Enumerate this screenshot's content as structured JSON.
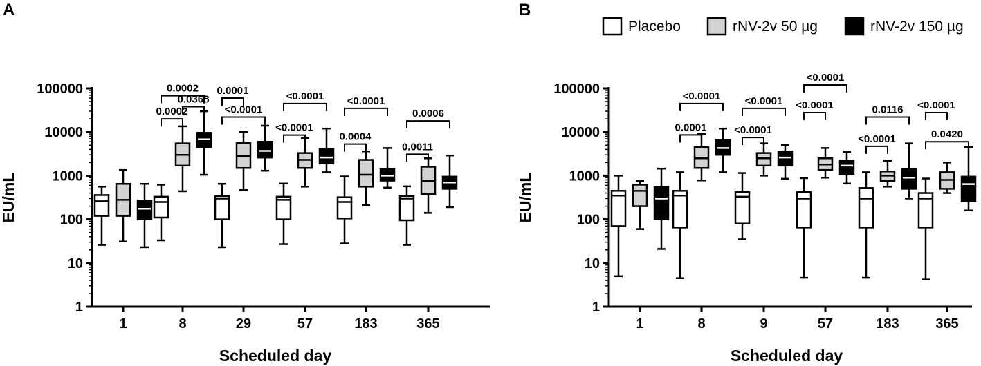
{
  "legend": [
    {
      "label": "Placebo",
      "fill": "#ffffff"
    },
    {
      "label": "rNV-2v 50 µg",
      "fill": "#d3d3d3"
    },
    {
      "label": "rNV-2v 150 µg",
      "fill": "#000000"
    }
  ],
  "chart_data": [
    {
      "panel": "A",
      "type": "box",
      "xlabel": "Scheduled day",
      "ylabel": "EU/mL",
      "yscale": "log",
      "ylim": [
        1,
        100000
      ],
      "yticks": [
        "1",
        "10",
        "100",
        "1000",
        "10000",
        "100000"
      ],
      "categories": [
        "1",
        "8",
        "29",
        "57",
        "183",
        "365"
      ],
      "series": [
        {
          "name": "Placebo",
          "fill": "#ffffff",
          "boxes": [
            {
              "min": 26,
              "q1": 120,
              "median": 260,
              "q3": 360,
              "max": 560
            },
            {
              "min": 33,
              "q1": 110,
              "median": 250,
              "q3": 330,
              "max": 620
            },
            {
              "min": 23,
              "q1": 100,
              "median": 300,
              "q3": 340,
              "max": 650
            },
            {
              "min": 27,
              "q1": 100,
              "median": 280,
              "q3": 330,
              "max": 660
            },
            {
              "min": 28,
              "q1": 105,
              "median": 250,
              "q3": 320,
              "max": 960
            },
            {
              "min": 26,
              "q1": 95,
              "median": 300,
              "q3": 340,
              "max": 570
            }
          ]
        },
        {
          "name": "rNV-2v 50 µg",
          "fill": "#d3d3d3",
          "boxes": [
            {
              "min": 31,
              "q1": 120,
              "median": 280,
              "q3": 650,
              "max": 1350
            },
            {
              "min": 440,
              "q1": 1700,
              "median": 3000,
              "q3": 5500,
              "max": 13500
            },
            {
              "min": 470,
              "q1": 1500,
              "median": 2800,
              "q3": 5600,
              "max": 10000
            },
            {
              "min": 560,
              "q1": 1500,
              "median": 2300,
              "q3": 3300,
              "max": 7200
            },
            {
              "min": 210,
              "q1": 560,
              "median": 1050,
              "q3": 2300,
              "max": 3600
            },
            {
              "min": 140,
              "q1": 380,
              "median": 750,
              "q3": 1600,
              "max": 2500
            }
          ]
        },
        {
          "name": "rNV-2v 150 µg",
          "fill": "#000000",
          "boxes": [
            {
              "min": 23,
              "q1": 100,
              "median": 175,
              "q3": 270,
              "max": 650
            },
            {
              "min": 1050,
              "q1": 4500,
              "median": 6800,
              "q3": 9600,
              "max": 30000
            },
            {
              "min": 1300,
              "q1": 2600,
              "median": 3700,
              "q3": 6000,
              "max": 14000
            },
            {
              "min": 1200,
              "q1": 1900,
              "median": 2600,
              "q3": 4100,
              "max": 12000
            },
            {
              "min": 530,
              "q1": 770,
              "median": 1000,
              "q3": 1400,
              "max": 4300
            },
            {
              "min": 190,
              "q1": 500,
              "median": 700,
              "q3": 950,
              "max": 2900
            }
          ]
        }
      ],
      "annotations": [
        {
          "text": "0.0002",
          "day": "8",
          "from": "Placebo",
          "to": "rNV-2v 150 µg",
          "level": 68000
        },
        {
          "text": "0.0368",
          "day": "8",
          "from": "rNV-2v 50 µg",
          "to": "rNV-2v 150 µg",
          "level": 38000
        },
        {
          "text": "0.0002",
          "day": "8",
          "from": "Placebo",
          "to": "rNV-2v 50 µg",
          "level": 20000
        },
        {
          "text": "0.0001",
          "day": "29",
          "from": "Placebo",
          "to": "rNV-2v 50 µg",
          "level": 60000
        },
        {
          "text": "<0.0001",
          "day": "29",
          "from": "Placebo",
          "to": "rNV-2v 150 µg",
          "level": 22000
        },
        {
          "text": "<0.0001",
          "day": "57",
          "from": "Placebo",
          "to": "rNV-2v 150 µg",
          "level": 45000
        },
        {
          "text": "<0.0001",
          "day": "57",
          "from": "Placebo",
          "to": "rNV-2v 50 µg",
          "level": 8500
        },
        {
          "text": "<0.0001",
          "day": "183",
          "from": "Placebo",
          "to": "rNV-2v 150 µg",
          "level": 35000
        },
        {
          "text": "0.0004",
          "day": "183",
          "from": "Placebo",
          "to": "rNV-2v 50 µg",
          "level": 5300
        },
        {
          "text": "0.0006",
          "day": "365",
          "from": "Placebo",
          "to": "rNV-2v 150 µg",
          "level": 18000
        },
        {
          "text": "0.0011",
          "day": "365",
          "from": "Placebo",
          "to": "rNV-2v 50 µg",
          "level": 3100
        }
      ]
    },
    {
      "panel": "B",
      "type": "box",
      "xlabel": "Scheduled day",
      "ylabel": "EU/mL",
      "yscale": "log",
      "ylim": [
        1,
        100000
      ],
      "yticks": [
        "1",
        "10",
        "100",
        "1000",
        "10000",
        "100000"
      ],
      "categories": [
        "1",
        "8",
        "9",
        "57",
        "183",
        "365"
      ],
      "series": [
        {
          "name": "Placebo",
          "fill": "#ffffff",
          "boxes": [
            {
              "min": 5,
              "q1": 70,
              "median": 350,
              "q3": 450,
              "max": 1000
            },
            {
              "min": 4.5,
              "q1": 65,
              "median": 350,
              "q3": 450,
              "max": 1200
            },
            {
              "min": 35,
              "q1": 80,
              "median": 330,
              "q3": 420,
              "max": 1150
            },
            {
              "min": 4.6,
              "q1": 65,
              "median": 300,
              "q3": 420,
              "max": 880
            },
            {
              "min": 4.6,
              "q1": 65,
              "median": 300,
              "q3": 520,
              "max": 1200
            },
            {
              "min": 4.2,
              "q1": 65,
              "median": 300,
              "q3": 400,
              "max": 860
            }
          ]
        },
        {
          "name": "rNV-2v 50 µg",
          "fill": "#d3d3d3",
          "boxes": [
            {
              "min": 60,
              "q1": 200,
              "median": 450,
              "q3": 620,
              "max": 760
            },
            {
              "min": 780,
              "q1": 1500,
              "median": 2500,
              "q3": 4500,
              "max": 9000
            },
            {
              "min": 1000,
              "q1": 1700,
              "median": 2500,
              "q3": 3300,
              "max": 5500
            },
            {
              "min": 900,
              "q1": 1350,
              "median": 1800,
              "q3": 2500,
              "max": 4300
            },
            {
              "min": 560,
              "q1": 760,
              "median": 1000,
              "q3": 1250,
              "max": 2200
            },
            {
              "min": 400,
              "q1": 500,
              "median": 800,
              "q3": 1200,
              "max": 2000
            }
          ]
        },
        {
          "name": "rNV-2v 150 µg",
          "fill": "#000000",
          "boxes": [
            {
              "min": 21,
              "q1": 100,
              "median": 300,
              "q3": 550,
              "max": 1450
            },
            {
              "min": 1200,
              "q1": 3000,
              "median": 4300,
              "q3": 6500,
              "max": 12000
            },
            {
              "min": 850,
              "q1": 1700,
              "median": 2600,
              "q3": 3600,
              "max": 5000
            },
            {
              "min": 660,
              "q1": 1100,
              "median": 1700,
              "q3": 2200,
              "max": 3500
            },
            {
              "min": 300,
              "q1": 500,
              "median": 900,
              "q3": 1400,
              "max": 5500
            },
            {
              "min": 160,
              "q1": 260,
              "median": 640,
              "q3": 950,
              "max": 4500
            }
          ]
        }
      ],
      "annotations": [
        {
          "text": "<0.0001",
          "day": "8",
          "from": "Placebo",
          "to": "rNV-2v 150 µg",
          "level": 45000
        },
        {
          "text": "0.0001",
          "day": "8",
          "from": "Placebo",
          "to": "rNV-2v 50 µg",
          "level": 8600
        },
        {
          "text": "<0.0001",
          "day": "9",
          "from": "Placebo",
          "to": "rNV-2v 150 µg",
          "level": 35000
        },
        {
          "text": "<0.0001",
          "day": "9",
          "from": "Placebo",
          "to": "rNV-2v 50 µg",
          "level": 7500
        },
        {
          "text": "<0.0001",
          "day": "57",
          "from": "Placebo",
          "to": "rNV-2v 150 µg",
          "level": 120000
        },
        {
          "text": "<0.0001",
          "day": "57",
          "from": "Placebo",
          "to": "rNV-2v 50 µg",
          "level": 28000
        },
        {
          "text": "0.0116",
          "day": "183",
          "from": "Placebo",
          "to": "rNV-2v 150 µg",
          "level": 22000
        },
        {
          "text": "<0.0001",
          "day": "183",
          "from": "Placebo",
          "to": "rNV-2v 50 µg",
          "level": 4700
        },
        {
          "text": "<0.0001",
          "day": "365",
          "from": "Placebo",
          "to": "rNV-2v 50 µg",
          "level": 28000
        },
        {
          "text": "0.0420",
          "day": "365",
          "from": "Placebo",
          "to": "rNV-2v 150 µg",
          "level": 6000
        }
      ]
    }
  ]
}
